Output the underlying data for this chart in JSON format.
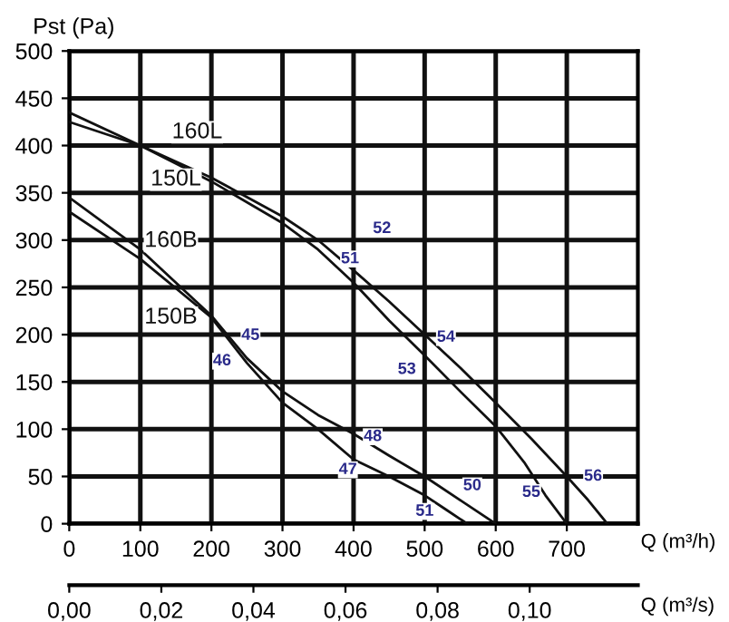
{
  "chart_data": {
    "type": "line",
    "ylabel": "Pst (Pa)",
    "xlabel": "Q (m³/h)",
    "x2label": "Q (m³/s)",
    "xlim": [
      0,
      800
    ],
    "xticks": [
      0,
      100,
      200,
      300,
      400,
      500,
      600,
      700
    ],
    "ylim": [
      0,
      500
    ],
    "yticks": [
      0,
      50,
      100,
      150,
      200,
      250,
      300,
      350,
      400,
      450,
      500
    ],
    "x2lim": [
      0,
      0.1235
    ],
    "x2ticks": [
      {
        "value": 0,
        "label": "0,00"
      },
      {
        "value": 0.02,
        "label": "0,02"
      },
      {
        "value": 0.04,
        "label": "0,04"
      },
      {
        "value": 0.06,
        "label": "0,06"
      },
      {
        "value": 0.08,
        "label": "0,08"
      },
      {
        "value": 0.1,
        "label": "0,10"
      }
    ],
    "grid": true,
    "marker": "none",
    "line_style": "solid",
    "series": [
      {
        "color": "#111111",
        "x": [
          0,
          100,
          200,
          300,
          350,
          400,
          450,
          500,
          550,
          600,
          650,
          700,
          730,
          757
        ],
        "values": [
          435,
          400,
          366,
          325,
          300,
          268,
          235,
          200,
          165,
          128,
          90,
          50,
          25,
          0
        ]
      },
      {
        "color": "#111111",
        "x": [
          0,
          100,
          200,
          300,
          350,
          400,
          450,
          500,
          550,
          600,
          640,
          670,
          700
        ],
        "values": [
          425,
          400,
          362,
          318,
          290,
          255,
          215,
          178,
          140,
          103,
          65,
          30,
          0
        ]
      },
      {
        "color": "#111111",
        "x": [
          0,
          100,
          200,
          250,
          300,
          350,
          400,
          450,
          500,
          550,
          600
        ],
        "values": [
          345,
          290,
          220,
          175,
          140,
          115,
          95,
          72,
          50,
          25,
          0
        ]
      },
      {
        "color": "#111111",
        "x": [
          0,
          100,
          200,
          250,
          300,
          350,
          400,
          450,
          500,
          530,
          560
        ],
        "values": [
          330,
          280,
          218,
          170,
          128,
          100,
          68,
          50,
          30,
          15,
          0
        ]
      }
    ],
    "annotations": [
      {
        "text": "160L",
        "x": 180,
        "y": 414
      },
      {
        "text": "150L",
        "x": 150,
        "y": 364
      },
      {
        "text": "160B",
        "x": 143,
        "y": 299
      },
      {
        "text": "150B",
        "x": 143,
        "y": 218
      },
      {
        "text": "52",
        "x": 440,
        "y": 312
      },
      {
        "text": "51",
        "x": 395,
        "y": 280
      },
      {
        "text": "54",
        "x": 530,
        "y": 197
      },
      {
        "text": "53",
        "x": 475,
        "y": 163
      },
      {
        "text": "45",
        "x": 255,
        "y": 199
      },
      {
        "text": "46",
        "x": 215,
        "y": 172
      },
      {
        "text": "48",
        "x": 427,
        "y": 92
      },
      {
        "text": "47",
        "x": 392,
        "y": 57
      },
      {
        "text": "50",
        "x": 567,
        "y": 40
      },
      {
        "text": "51",
        "x": 500,
        "y": 13
      },
      {
        "text": "55",
        "x": 650,
        "y": 33
      },
      {
        "text": "56",
        "x": 737,
        "y": 50
      }
    ]
  }
}
